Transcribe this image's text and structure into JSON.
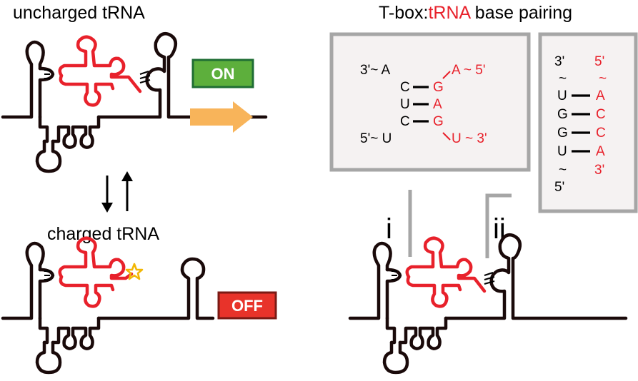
{
  "titles": {
    "uncharged": "uncharged tRNA",
    "charged": "charged tRNA",
    "pairing_prefix": "T-box:",
    "pairing_highlight": "tRNA",
    "pairing_suffix": " base pairing"
  },
  "badges": {
    "on": "ON",
    "off": "OFF"
  },
  "colors": {
    "trna": "#e8212b",
    "on_badge": "#5daf3c",
    "off_badge": "#e8332a",
    "arrow": "#f8b45a",
    "star": "#f2b705",
    "box_border": "#a6a6a6",
    "box_fill": "#f5f2f2"
  },
  "box_i": {
    "tbox_3end": "3'~ A",
    "tbox_c1": "C",
    "tbox_u": "U",
    "tbox_c2": "C",
    "tbox_5end": "5'~ U",
    "trna_a5": "A ~ 5'",
    "trna_g1": "G",
    "trna_a": "A",
    "trna_g2": "G",
    "trna_u3": "U ~ 3'"
  },
  "box_ii": {
    "tbox_3": "3'",
    "tbox_tilde_top": "~",
    "tbox_u1": "U",
    "tbox_g1": "G",
    "tbox_g2": "G",
    "tbox_u2": "U",
    "tbox_tilde_bottom": "~",
    "tbox_5": "5'",
    "trna_5": "5'",
    "trna_tilde": "~",
    "trna_a1": "A",
    "trna_c1": "C",
    "trna_c2": "C",
    "trna_a2": "A",
    "trna_3": "3'"
  },
  "labels": {
    "i": "i",
    "ii": "ii"
  }
}
